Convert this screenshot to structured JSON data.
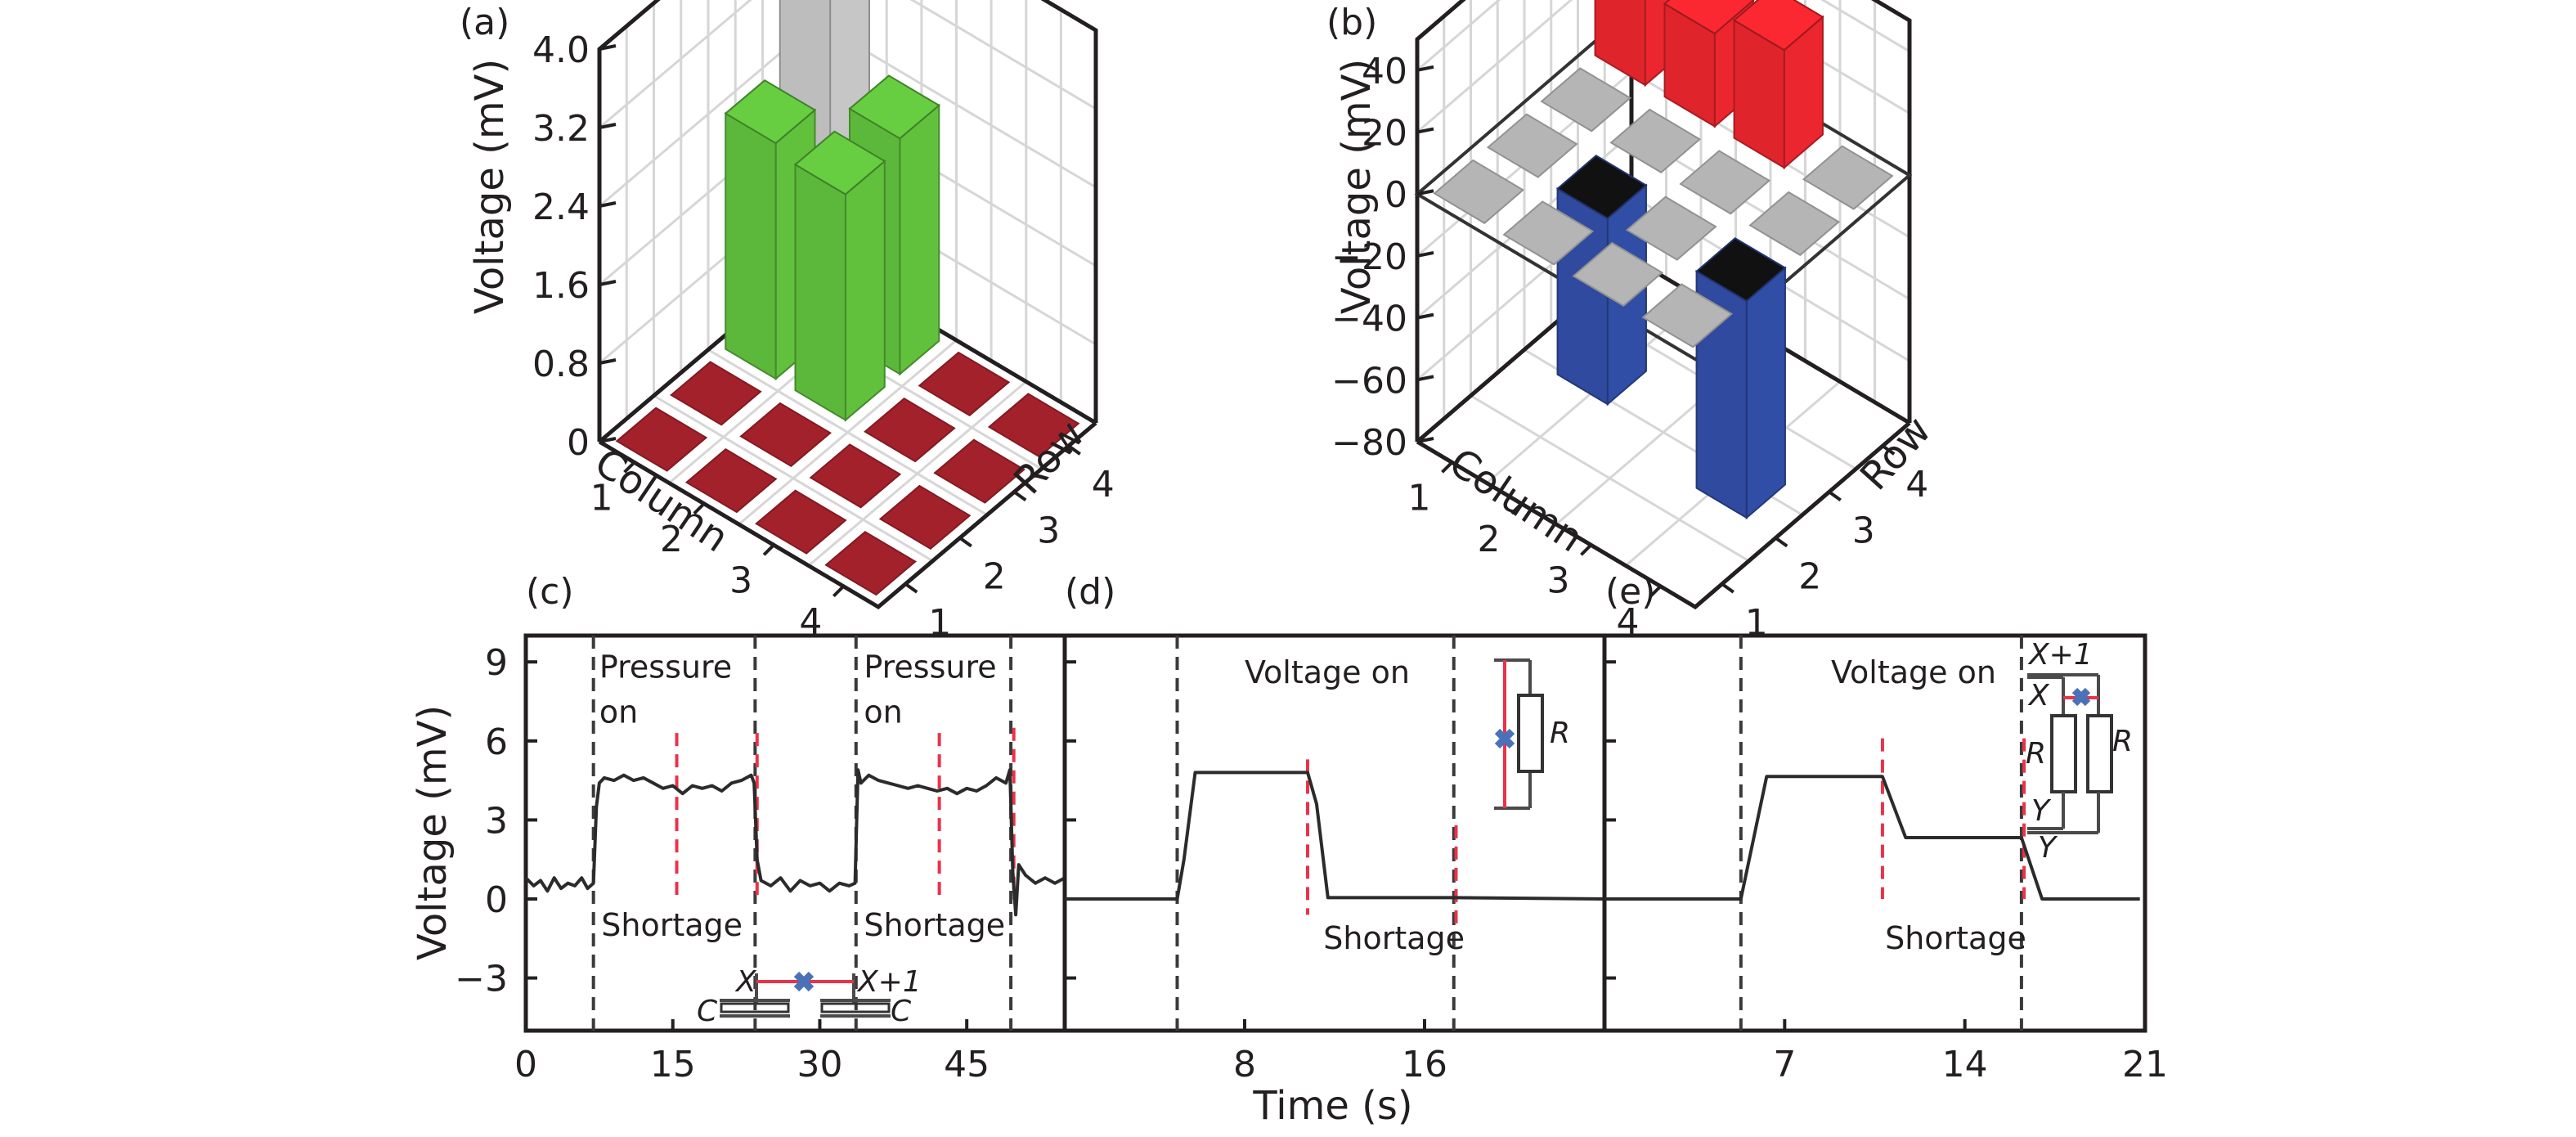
{
  "figure": {
    "panels": [
      "(a)",
      "(b)",
      "(c)",
      "(d)",
      "(e)"
    ],
    "shared_xlabel": "Time (s)",
    "shared_ylabel_bottom": "Voltage (mV)"
  },
  "chart_data": [
    {
      "id": "a",
      "panel_label": "(a)",
      "type": "bar3d",
      "title": "",
      "zlabel": "Voltage (mV)",
      "xlabel": "Column",
      "ylabel": "Row",
      "zlim": [
        0,
        4.0
      ],
      "zticks": [
        "0",
        "0.8",
        "1.6",
        "2.4",
        "3.2",
        "4.0"
      ],
      "zticks_values": [
        0,
        0.8,
        1.6,
        2.4,
        3.2,
        4.0
      ],
      "column_ticks": [
        "1",
        "2",
        "3",
        "4"
      ],
      "row_ticks": [
        "1",
        "2",
        "3",
        "4"
      ],
      "grid": true,
      "colors": {
        "pressed": "#bdbdbd",
        "neighbor": "#5cb83a",
        "idle": "#a3212a"
      },
      "cells": [
        {
          "column": 1,
          "row": 1,
          "value": 0.02,
          "kind": "idle"
        },
        {
          "column": 2,
          "row": 1,
          "value": 0.02,
          "kind": "idle"
        },
        {
          "column": 3,
          "row": 1,
          "value": 0.02,
          "kind": "idle"
        },
        {
          "column": 4,
          "row": 1,
          "value": 0.02,
          "kind": "idle"
        },
        {
          "column": 1,
          "row": 2,
          "value": 0.02,
          "kind": "idle"
        },
        {
          "column": 2,
          "row": 2,
          "value": 0.02,
          "kind": "idle"
        },
        {
          "column": 3,
          "row": 2,
          "value": 0.02,
          "kind": "idle"
        },
        {
          "column": 4,
          "row": 2,
          "value": 0.02,
          "kind": "idle"
        },
        {
          "column": 1,
          "row": 3,
          "value": 2.4,
          "kind": "neighbor"
        },
        {
          "column": 2,
          "row": 3,
          "value": 2.3,
          "kind": "neighbor"
        },
        {
          "column": 3,
          "row": 3,
          "value": 0.02,
          "kind": "idle"
        },
        {
          "column": 4,
          "row": 3,
          "value": 0.02,
          "kind": "idle"
        },
        {
          "column": 1,
          "row": 4,
          "value": 4.0,
          "kind": "pressed"
        },
        {
          "column": 2,
          "row": 4,
          "value": 2.4,
          "kind": "neighbor"
        },
        {
          "column": 3,
          "row": 4,
          "value": 0.02,
          "kind": "idle"
        },
        {
          "column": 4,
          "row": 4,
          "value": 0.02,
          "kind": "idle"
        }
      ]
    },
    {
      "id": "b",
      "panel_label": "(b)",
      "type": "bar3d",
      "title": "",
      "zlabel": "Voltage (mV)",
      "xlabel": "Column",
      "ylabel": "Row",
      "zlim": [
        -80,
        50
      ],
      "zticks": [
        "−80",
        "−60",
        "−40",
        "−20",
        "0",
        "20",
        "40"
      ],
      "zticks_values": [
        -80,
        -60,
        -40,
        -20,
        0,
        20,
        40
      ],
      "column_ticks": [
        "1",
        "2",
        "3",
        "4"
      ],
      "row_ticks": [
        "1",
        "2",
        "3",
        "4"
      ],
      "grid": true,
      "zero_plane": true,
      "colors": {
        "positive": "#e0242c",
        "negative": "#2f4a9e",
        "idle": "#b5b5b5",
        "neg_top": "#111111"
      },
      "cells": [
        {
          "column": 1,
          "row": 1,
          "value": 0,
          "kind": "idle"
        },
        {
          "column": 2,
          "row": 1,
          "value": 0,
          "kind": "idle"
        },
        {
          "column": 3,
          "row": 1,
          "value": 0,
          "kind": "idle"
        },
        {
          "column": 4,
          "row": 1,
          "value": 0,
          "kind": "idle"
        },
        {
          "column": 1,
          "row": 2,
          "value": 0,
          "kind": "idle"
        },
        {
          "column": 2,
          "row": 2,
          "value": -60,
          "kind": "negative"
        },
        {
          "column": 3,
          "row": 2,
          "value": 0,
          "kind": "idle"
        },
        {
          "column": 4,
          "row": 2,
          "value": -70,
          "kind": "negative"
        },
        {
          "column": 1,
          "row": 3,
          "value": 0,
          "kind": "idle"
        },
        {
          "column": 2,
          "row": 3,
          "value": 0,
          "kind": "idle"
        },
        {
          "column": 3,
          "row": 3,
          "value": 0,
          "kind": "idle"
        },
        {
          "column": 4,
          "row": 3,
          "value": 0,
          "kind": "idle"
        },
        {
          "column": 1,
          "row": 4,
          "value": 30,
          "kind": "positive"
        },
        {
          "column": 2,
          "row": 4,
          "value": 30,
          "kind": "positive"
        },
        {
          "column": 3,
          "row": 4,
          "value": 38,
          "kind": "positive"
        },
        {
          "column": 4,
          "row": 4,
          "value": 0,
          "kind": "idle"
        }
      ]
    },
    {
      "id": "c",
      "panel_label": "(c)",
      "type": "line",
      "xlabel": "",
      "ylabel": "Voltage (mV)",
      "xlim": [
        0,
        55
      ],
      "ylim": [
        -5,
        10
      ],
      "xticks": [
        0,
        15,
        30,
        45
      ],
      "xtick_labels": [
        "0",
        "15",
        "30",
        "45"
      ],
      "yticks": [
        -3,
        0,
        3,
        6,
        9
      ],
      "ytick_labels": [
        "−3",
        "0",
        "3",
        "6",
        "9"
      ],
      "series": [
        {
          "name": "voltage",
          "color": "#2b2b2b",
          "x": [
            0,
            0.8,
            1.5,
            2.2,
            2.9,
            3.6,
            4.3,
            5.0,
            5.7,
            6.3,
            6.9,
            7.2,
            7.5,
            8.0,
            9.0,
            10.0,
            11.0,
            12.0,
            13.0,
            14.0,
            15.0,
            16.0,
            17.0,
            18.0,
            19.0,
            20.0,
            21.0,
            22.0,
            23.0,
            23.3,
            23.6,
            24.0,
            25.0,
            26.0,
            27.0,
            28.0,
            29.0,
            30.0,
            31.0,
            32.0,
            33.0,
            33.6,
            33.9,
            34.2,
            35.0,
            36.0,
            37.0,
            38.0,
            39.0,
            40.0,
            41.0,
            42.0,
            43.0,
            44.0,
            45.0,
            46.0,
            47.0,
            48.0,
            49.0,
            49.4,
            49.7,
            50.0,
            50.3,
            51.0,
            52.0,
            53.0,
            54.0,
            55.0
          ],
          "y": [
            0.8,
            0.5,
            0.7,
            0.3,
            0.8,
            0.4,
            0.6,
            0.5,
            0.8,
            0.4,
            0.6,
            3.5,
            4.4,
            4.6,
            4.5,
            4.7,
            4.5,
            4.6,
            4.4,
            4.2,
            4.3,
            4.0,
            4.3,
            4.2,
            4.3,
            4.1,
            4.4,
            4.5,
            4.7,
            4.4,
            1.5,
            0.7,
            0.5,
            0.8,
            0.3,
            0.7,
            0.5,
            0.6,
            0.3,
            0.6,
            0.5,
            0.6,
            4.9,
            4.4,
            4.7,
            4.5,
            4.4,
            4.3,
            4.2,
            4.3,
            4.2,
            4.1,
            4.2,
            4.0,
            4.2,
            4.1,
            4.3,
            4.6,
            4.4,
            4.9,
            1.0,
            -0.6,
            1.3,
            0.9,
            0.6,
            0.8,
            0.6,
            0.8
          ]
        }
      ],
      "vlines": [
        {
          "x": 6.9,
          "color": "black",
          "ymin": -5,
          "ymax": 10
        },
        {
          "x": 23.4,
          "color": "black",
          "ymin": -5,
          "ymax": 10
        },
        {
          "x": 33.7,
          "color": "black",
          "ymin": -5,
          "ymax": 10
        },
        {
          "x": 49.5,
          "color": "black",
          "ymin": -5,
          "ymax": 10
        },
        {
          "x": 15.4,
          "color": "red",
          "ymin": 0,
          "ymax": 6.3
        },
        {
          "x": 23.6,
          "color": "red",
          "ymin": 0,
          "ymax": 6.3
        },
        {
          "x": 42.2,
          "color": "red",
          "ymin": 0,
          "ymax": 6.3
        },
        {
          "x": 49.8,
          "color": "red",
          "ymin": 0,
          "ymax": 6.5
        }
      ],
      "annotations": [
        {
          "text": "Pressure",
          "x": 7.5,
          "y": 8.4
        },
        {
          "text": "on",
          "x": 7.5,
          "y": 6.7
        },
        {
          "text": "Shortage",
          "x": 7.7,
          "y": -1.4
        },
        {
          "text": "Pressure",
          "x": 34.5,
          "y": 8.4
        },
        {
          "text": "on",
          "x": 34.5,
          "y": 6.7
        },
        {
          "text": "Shortage",
          "x": 34.5,
          "y": -1.4
        }
      ],
      "inset": {
        "labels": [
          "X",
          "X+1",
          "C",
          "C"
        ]
      }
    },
    {
      "id": "d",
      "panel_label": "(d)",
      "type": "line",
      "xlabel": "Time (s)",
      "ylabel": "",
      "xlim": [
        0,
        24
      ],
      "ylim": [
        -5,
        10
      ],
      "xticks": [
        8,
        16
      ],
      "xtick_labels": [
        "8",
        "16"
      ],
      "yticks": [
        -3,
        0,
        3,
        6,
        9
      ],
      "series": [
        {
          "name": "voltage",
          "color": "#2b2b2b",
          "x": [
            0,
            5.0,
            5.3,
            5.8,
            10.8,
            11.2,
            11.7,
            17.3,
            24
          ],
          "y": [
            0,
            0,
            1.5,
            4.8,
            4.8,
            3.6,
            0.05,
            0.05,
            0
          ]
        }
      ],
      "vlines": [
        {
          "x": 5.0,
          "color": "black",
          "ymin": -5,
          "ymax": 10
        },
        {
          "x": 17.3,
          "color": "black",
          "ymin": -5,
          "ymax": 10
        },
        {
          "x": 10.8,
          "color": "red",
          "ymin": -0.6,
          "ymax": 5.3
        },
        {
          "x": 17.4,
          "color": "red",
          "ymin": -1.0,
          "ymax": 2.8
        }
      ],
      "annotations": [
        {
          "text": "Voltage on",
          "x": 8.0,
          "y": 8.2
        },
        {
          "text": "Shortage",
          "x": 11.5,
          "y": -1.9
        }
      ],
      "inset": {
        "labels": [
          "R"
        ]
      }
    },
    {
      "id": "e",
      "panel_label": "(e)",
      "type": "line",
      "xlabel": "",
      "ylabel": "",
      "xlim": [
        0,
        21
      ],
      "ylim": [
        -5,
        10
      ],
      "xticks": [
        7,
        14,
        21
      ],
      "xtick_labels": [
        "7",
        "14",
        "21"
      ],
      "yticks": [
        -3,
        0,
        3,
        6,
        9
      ],
      "series": [
        {
          "name": "voltage",
          "color": "#2b2b2b",
          "x": [
            0,
            5.3,
            6.3,
            10.8,
            11.7,
            16.2,
            17.0,
            20.8
          ],
          "y": [
            0,
            0,
            4.65,
            4.65,
            2.33,
            2.33,
            0,
            0
          ]
        }
      ],
      "vlines": [
        {
          "x": 5.3,
          "color": "black",
          "ymin": -5,
          "ymax": 10
        },
        {
          "x": 16.2,
          "color": "black",
          "ymin": -5,
          "ymax": 10
        },
        {
          "x": 10.8,
          "color": "red",
          "ymin": 0,
          "ymax": 6.1
        },
        {
          "x": 16.3,
          "color": "red",
          "ymin": 0,
          "ymax": 6.1
        }
      ],
      "annotations": [
        {
          "text": "Voltage on",
          "x": 8.8,
          "y": 8.2
        },
        {
          "text": "Shortage",
          "x": 10.9,
          "y": -1.9
        }
      ],
      "inset": {
        "labels": [
          "X+1",
          "X",
          "R",
          "R",
          "Y",
          "Y"
        ]
      }
    }
  ]
}
